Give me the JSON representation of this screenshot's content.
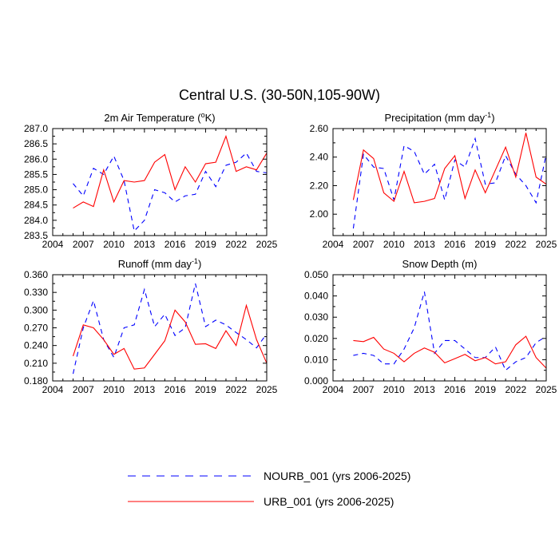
{
  "title": "Central U.S. (30-50N,105-90W)",
  "colors": {
    "nourb": "#0000ff",
    "urb": "#ff0000",
    "axis": "#000000"
  },
  "legend": [
    {
      "key": "nourb",
      "label": "NOURB_001 (yrs 2006-2025)",
      "style": "dashed",
      "color": "#0000ff"
    },
    {
      "key": "urb",
      "label": "URB_001 (yrs 2006-2025)",
      "style": "solid",
      "color": "#ff0000"
    }
  ],
  "chart_data": [
    {
      "type": "line",
      "title": "2m Air Temperature (",
      "title_sup": "o",
      "title_tail": "K)",
      "xlim": [
        2004,
        2025
      ],
      "ylim": [
        283.5,
        287.0
      ],
      "xticks": [
        2004,
        2007,
        2010,
        2013,
        2016,
        2019,
        2022,
        2025
      ],
      "yticks": [
        283.5,
        284.0,
        284.5,
        285.0,
        285.5,
        286.0,
        286.5,
        287.0
      ],
      "ytick_labels": [
        "283.5",
        "284.0",
        "284.5",
        "285.0",
        "285.5",
        "286.0",
        "286.5",
        "287.0"
      ],
      "x": [
        2006,
        2007,
        2008,
        2009,
        2010,
        2011,
        2012,
        2013,
        2014,
        2015,
        2016,
        2017,
        2018,
        2019,
        2020,
        2021,
        2022,
        2023,
        2024,
        2025
      ],
      "series": [
        {
          "name": "NOURB_001",
          "values": [
            285.2,
            284.8,
            285.7,
            285.5,
            286.1,
            285.3,
            283.65,
            284.0,
            285.0,
            284.9,
            284.6,
            284.8,
            284.85,
            285.6,
            285.1,
            285.8,
            285.9,
            286.2,
            285.6,
            285.55
          ]
        },
        {
          "name": "URB_001",
          "values": [
            284.4,
            284.6,
            284.45,
            285.65,
            284.6,
            285.3,
            285.25,
            285.3,
            285.9,
            286.15,
            285.0,
            285.75,
            285.25,
            285.85,
            285.9,
            286.75,
            285.6,
            285.75,
            285.65,
            286.2
          ]
        }
      ]
    },
    {
      "type": "line",
      "title": "Precipitation (mm day",
      "title_sup": "-1",
      "title_tail": ")",
      "xlim": [
        2004,
        2025
      ],
      "ylim": [
        1.85,
        2.6
      ],
      "xticks": [
        2004,
        2007,
        2010,
        2013,
        2016,
        2019,
        2022,
        2025
      ],
      "yticks": [
        2.0,
        2.2,
        2.4,
        2.6
      ],
      "ytick_labels": [
        "2.00",
        "2.20",
        "2.40",
        "2.60"
      ],
      "x": [
        2006,
        2007,
        2008,
        2009,
        2010,
        2011,
        2012,
        2013,
        2014,
        2015,
        2016,
        2017,
        2018,
        2019,
        2020,
        2021,
        2022,
        2023,
        2024,
        2025
      ],
      "series": [
        {
          "name": "NOURB_001",
          "values": [
            1.9,
            2.42,
            2.33,
            2.32,
            2.1,
            2.48,
            2.44,
            2.28,
            2.35,
            2.1,
            2.38,
            2.33,
            2.53,
            2.21,
            2.22,
            2.41,
            2.28,
            2.2,
            2.08,
            2.42
          ]
        },
        {
          "name": "URB_001",
          "values": [
            2.1,
            2.45,
            2.39,
            2.15,
            2.09,
            2.3,
            2.08,
            2.09,
            2.11,
            2.32,
            2.41,
            2.11,
            2.31,
            2.15,
            2.31,
            2.47,
            2.26,
            2.57,
            2.26,
            2.21
          ]
        }
      ]
    },
    {
      "type": "line",
      "title": "Runoff (mm day",
      "title_sup": "-1",
      "title_tail": ")",
      "xlim": [
        2004,
        2025
      ],
      "ylim": [
        0.18,
        0.36
      ],
      "xticks": [
        2004,
        2007,
        2010,
        2013,
        2016,
        2019,
        2022,
        2025
      ],
      "yticks": [
        0.18,
        0.21,
        0.24,
        0.27,
        0.3,
        0.33,
        0.36
      ],
      "ytick_labels": [
        "0.180",
        "0.210",
        "0.240",
        "0.270",
        "0.300",
        "0.330",
        "0.360"
      ],
      "x": [
        2006,
        2007,
        2008,
        2009,
        2010,
        2011,
        2012,
        2013,
        2014,
        2015,
        2016,
        2017,
        2018,
        2019,
        2020,
        2021,
        2022,
        2023,
        2024,
        2025
      ],
      "series": [
        {
          "name": "NOURB_001",
          "values": [
            0.192,
            0.27,
            0.316,
            0.25,
            0.22,
            0.27,
            0.275,
            0.335,
            0.272,
            0.293,
            0.257,
            0.27,
            0.345,
            0.272,
            0.283,
            0.275,
            0.262,
            0.25,
            0.236,
            0.26
          ]
        },
        {
          "name": "URB_001",
          "values": [
            0.222,
            0.275,
            0.27,
            0.25,
            0.225,
            0.235,
            0.2,
            0.202,
            0.225,
            0.248,
            0.3,
            0.28,
            0.242,
            0.243,
            0.235,
            0.265,
            0.24,
            0.308,
            0.25,
            0.21
          ]
        }
      ]
    },
    {
      "type": "line",
      "title": "Snow Depth (m)",
      "title_sup": "",
      "title_tail": "",
      "xlim": [
        2004,
        2025
      ],
      "ylim": [
        0.0,
        0.05
      ],
      "xticks": [
        2004,
        2007,
        2010,
        2013,
        2016,
        2019,
        2022,
        2025
      ],
      "yticks": [
        0.0,
        0.01,
        0.02,
        0.03,
        0.04,
        0.05
      ],
      "ytick_labels": [
        "0.000",
        "0.010",
        "0.020",
        "0.030",
        "0.040",
        "0.050"
      ],
      "x": [
        2006,
        2007,
        2008,
        2009,
        2010,
        2011,
        2012,
        2013,
        2014,
        2015,
        2016,
        2017,
        2018,
        2019,
        2020,
        2021,
        2022,
        2023,
        2024,
        2025
      ],
      "series": [
        {
          "name": "NOURB_001",
          "values": [
            0.012,
            0.013,
            0.012,
            0.008,
            0.008,
            0.015,
            0.025,
            0.042,
            0.013,
            0.019,
            0.019,
            0.015,
            0.011,
            0.011,
            0.016,
            0.005,
            0.009,
            0.011,
            0.018,
            0.021
          ]
        },
        {
          "name": "URB_001",
          "values": [
            0.019,
            0.0185,
            0.0205,
            0.015,
            0.013,
            0.009,
            0.013,
            0.0155,
            0.0135,
            0.0085,
            0.0105,
            0.0125,
            0.0095,
            0.011,
            0.008,
            0.009,
            0.017,
            0.021,
            0.011,
            0.006
          ]
        }
      ]
    }
  ]
}
